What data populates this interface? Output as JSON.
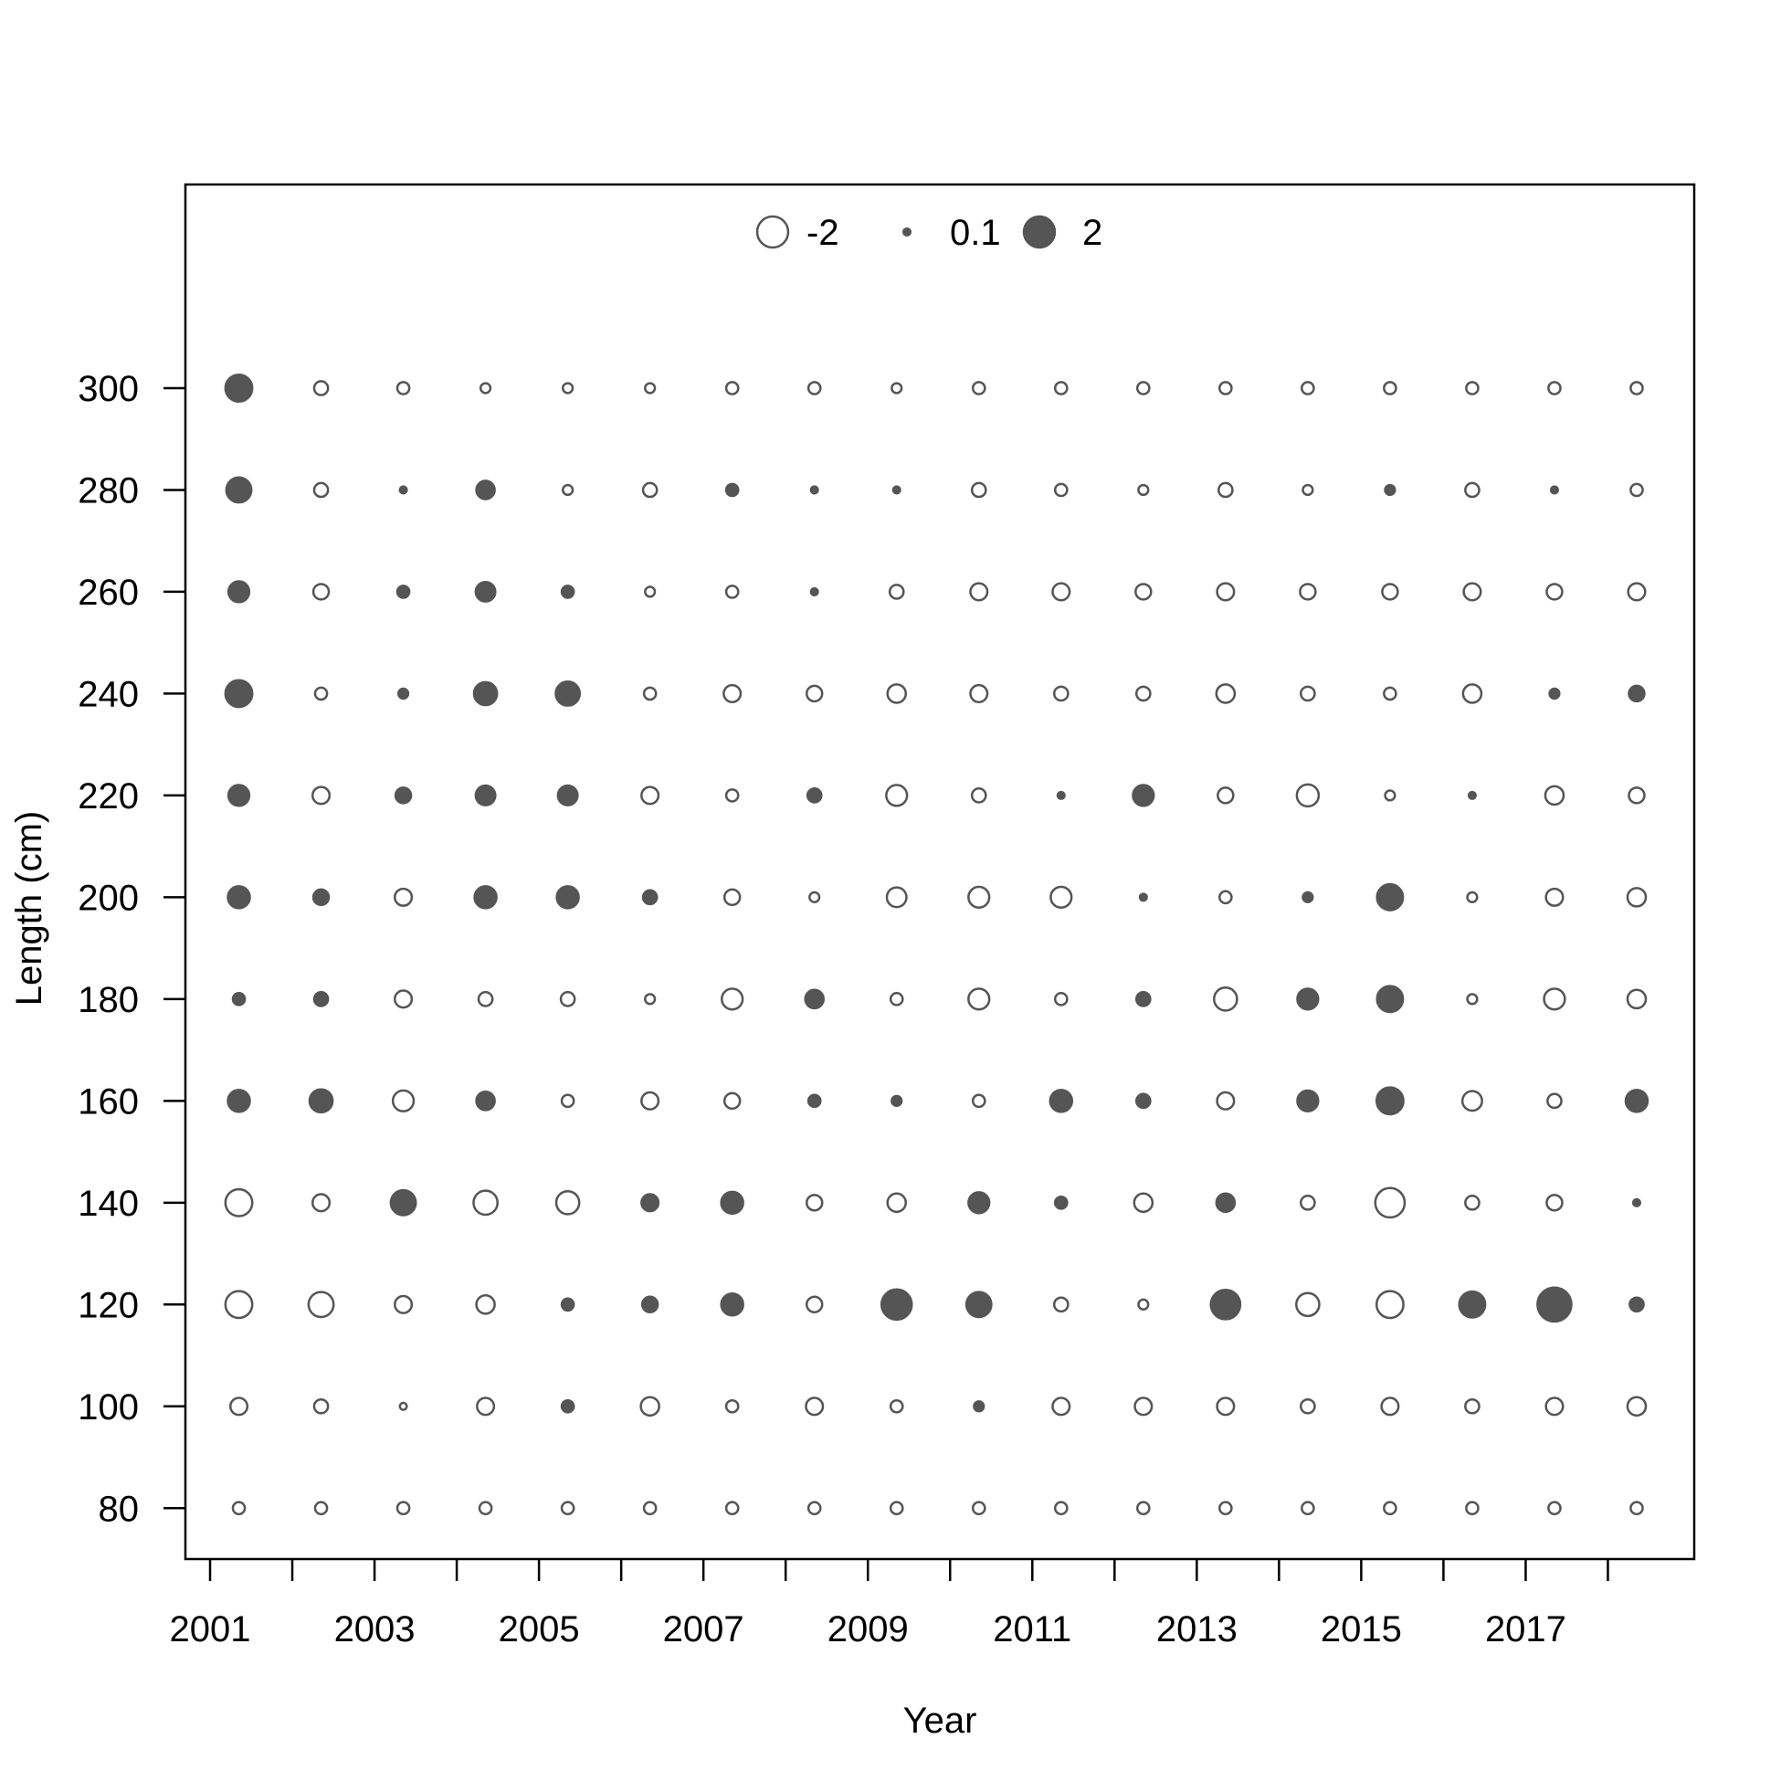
{
  "chart_data": {
    "type": "scatter",
    "subtype": "bubble",
    "title": "",
    "xlabel": "Year",
    "ylabel": "Length (cm)",
    "xlim": [
      2000.7,
      2019.05
    ],
    "ylim": [
      70,
      340
    ],
    "x_ticks": [
      2001,
      2002,
      2003,
      2004,
      2005,
      2006,
      2007,
      2008,
      2009,
      2010,
      2011,
      2012,
      2013,
      2014,
      2015,
      2016,
      2017,
      2018
    ],
    "x_tick_labels": [
      "2001",
      "",
      "2003",
      "",
      "2005",
      "",
      "2007",
      "",
      "2009",
      "",
      "2011",
      "",
      "2013",
      "",
      "2015",
      "",
      "2017",
      ""
    ],
    "y_ticks": [
      80,
      100,
      120,
      140,
      160,
      180,
      200,
      220,
      240,
      260,
      280,
      300
    ],
    "y_tick_labels": [
      "80",
      "100",
      "120",
      "140",
      "160",
      "180",
      "200",
      "220",
      "240",
      "260",
      "280",
      "300"
    ],
    "grid": false,
    "legend": {
      "placement": "top-center",
      "entries": [
        {
          "label": "-2",
          "value": -2
        },
        {
          "label": "0.1",
          "value": 0.1
        },
        {
          "label": "2",
          "value": 2
        }
      ]
    },
    "colors": {
      "positive_fill": "#555555",
      "negative_fill": "#ffffff",
      "stroke": "#555555"
    },
    "x": [
      2001.35,
      2002.35,
      2003.35,
      2004.35,
      2005.35,
      2006.35,
      2007.35,
      2008.35,
      2009.35,
      2010.35,
      2011.35,
      2012.35,
      2013.35,
      2014.35,
      2015.35,
      2016.35,
      2017.35,
      2018.35
    ],
    "y": [
      80,
      100,
      120,
      140,
      160,
      180,
      200,
      220,
      240,
      260,
      280,
      300
    ],
    "values": [
      [
        -0.3,
        -0.3,
        -0.3,
        -0.3,
        -0.3,
        -0.3,
        -0.3,
        -0.3,
        -0.3,
        -0.3,
        -0.3,
        -0.3,
        -0.3,
        -0.3,
        -0.3,
        -0.3,
        -0.3,
        -0.3
      ],
      [
        -0.6,
        -0.4,
        -0.1,
        -0.6,
        0.3,
        -0.7,
        -0.3,
        -0.6,
        -0.3,
        0.2,
        -0.6,
        -0.6,
        -0.6,
        -0.4,
        -0.6,
        -0.4,
        -0.6,
        -0.7
      ],
      [
        -1.5,
        -1.3,
        -0.6,
        -0.7,
        0.3,
        0.5,
        1.0,
        -0.5,
        1.9,
        1.3,
        -0.4,
        -0.2,
        1.8,
        -1.1,
        -1.5,
        1.4,
        2.4,
        0.4
      ],
      [
        -1.5,
        -0.6,
        1.3,
        -1.2,
        -1.1,
        0.6,
        1.0,
        -0.5,
        -0.7,
        0.9,
        0.3,
        -0.7,
        0.7,
        -0.4,
        -1.8,
        -0.4,
        -0.5,
        0.1
      ],
      [
        1.0,
        1.1,
        -0.9,
        0.7,
        -0.3,
        -0.6,
        -0.5,
        0.3,
        0.2,
        -0.3,
        1.0,
        0.4,
        -0.6,
        0.9,
        1.5,
        -0.8,
        -0.4,
        1.0
      ],
      [
        0.3,
        0.4,
        -0.6,
        -0.4,
        -0.4,
        -0.2,
        -0.9,
        0.7,
        -0.3,
        -0.9,
        -0.3,
        0.4,
        -1.1,
        0.9,
        1.4,
        -0.2,
        -0.9,
        -0.7
      ],
      [
        1.0,
        0.5,
        -0.6,
        1.0,
        1.0,
        0.4,
        -0.5,
        -0.2,
        -0.8,
        -0.9,
        -0.9,
        0.1,
        -0.3,
        0.2,
        1.4,
        -0.2,
        -0.6,
        -0.7
      ],
      [
        0.9,
        -0.6,
        0.5,
        0.8,
        0.8,
        -0.6,
        -0.3,
        0.4,
        -0.9,
        -0.4,
        0.1,
        0.9,
        -0.5,
        -1.0,
        -0.2,
        0.1,
        -0.7,
        -0.5
      ],
      [
        1.5,
        -0.3,
        0.2,
        1.1,
        1.2,
        -0.3,
        -0.6,
        -0.5,
        -0.7,
        -0.6,
        -0.4,
        -0.4,
        -0.7,
        -0.4,
        -0.3,
        -0.7,
        0.2,
        0.5
      ],
      [
        0.9,
        -0.5,
        0.3,
        0.8,
        0.3,
        -0.2,
        -0.3,
        0.1,
        -0.4,
        -0.6,
        -0.6,
        -0.5,
        -0.6,
        -0.5,
        -0.5,
        -0.6,
        -0.5,
        -0.6
      ],
      [
        1.3,
        -0.4,
        0.1,
        0.7,
        -0.2,
        -0.4,
        0.3,
        0.1,
        0.1,
        -0.4,
        -0.3,
        -0.2,
        -0.4,
        -0.2,
        0.2,
        -0.4,
        0.1,
        -0.3
      ],
      [
        1.5,
        -0.4,
        -0.3,
        -0.2,
        -0.2,
        -0.2,
        -0.3,
        -0.3,
        -0.2,
        -0.3,
        -0.3,
        -0.3,
        -0.3,
        -0.3,
        -0.3,
        -0.3,
        -0.3,
        -0.3
      ]
    ]
  }
}
